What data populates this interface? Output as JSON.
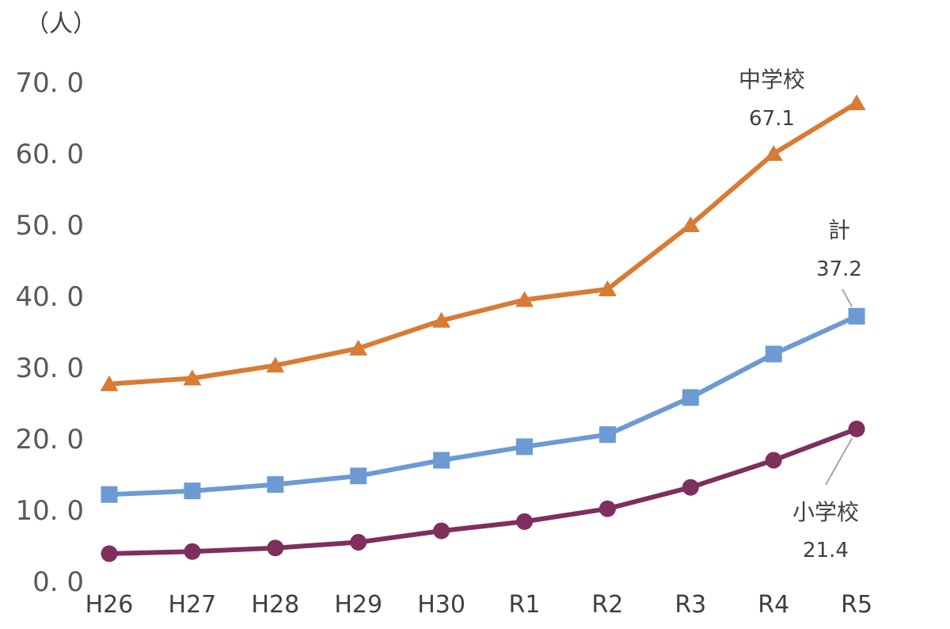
{
  "chart_data": {
    "type": "line",
    "unit_label": "（人）",
    "categories": [
      "H26",
      "H27",
      "H28",
      "H29",
      "H30",
      "R1",
      "R2",
      "R3",
      "R4",
      "R5"
    ],
    "ylim": [
      0,
      70
    ],
    "yticks": [
      "0. 0",
      "10. 0",
      "20. 0",
      "30. 0",
      "40. 0",
      "50. 0",
      "60. 0",
      "70. 0"
    ],
    "grid": false,
    "series": [
      {
        "name": "中学校",
        "color": "#D97B35",
        "marker": "triangle",
        "values": [
          27.7,
          28.5,
          30.3,
          32.7,
          36.6,
          39.5,
          41.0,
          50.0,
          60.0,
          67.1
        ],
        "end_label": "67.1"
      },
      {
        "name": "計",
        "color": "#6B9BD2",
        "marker": "square",
        "values": [
          12.2,
          12.7,
          13.6,
          14.8,
          17.0,
          18.9,
          20.6,
          25.8,
          31.9,
          37.2
        ],
        "end_label": "37.2"
      },
      {
        "name": "小学校",
        "color": "#7E2F5D",
        "marker": "circle",
        "values": [
          3.9,
          4.2,
          4.7,
          5.5,
          7.1,
          8.4,
          10.2,
          13.2,
          17.0,
          21.4
        ],
        "end_label": "21.4"
      }
    ]
  }
}
